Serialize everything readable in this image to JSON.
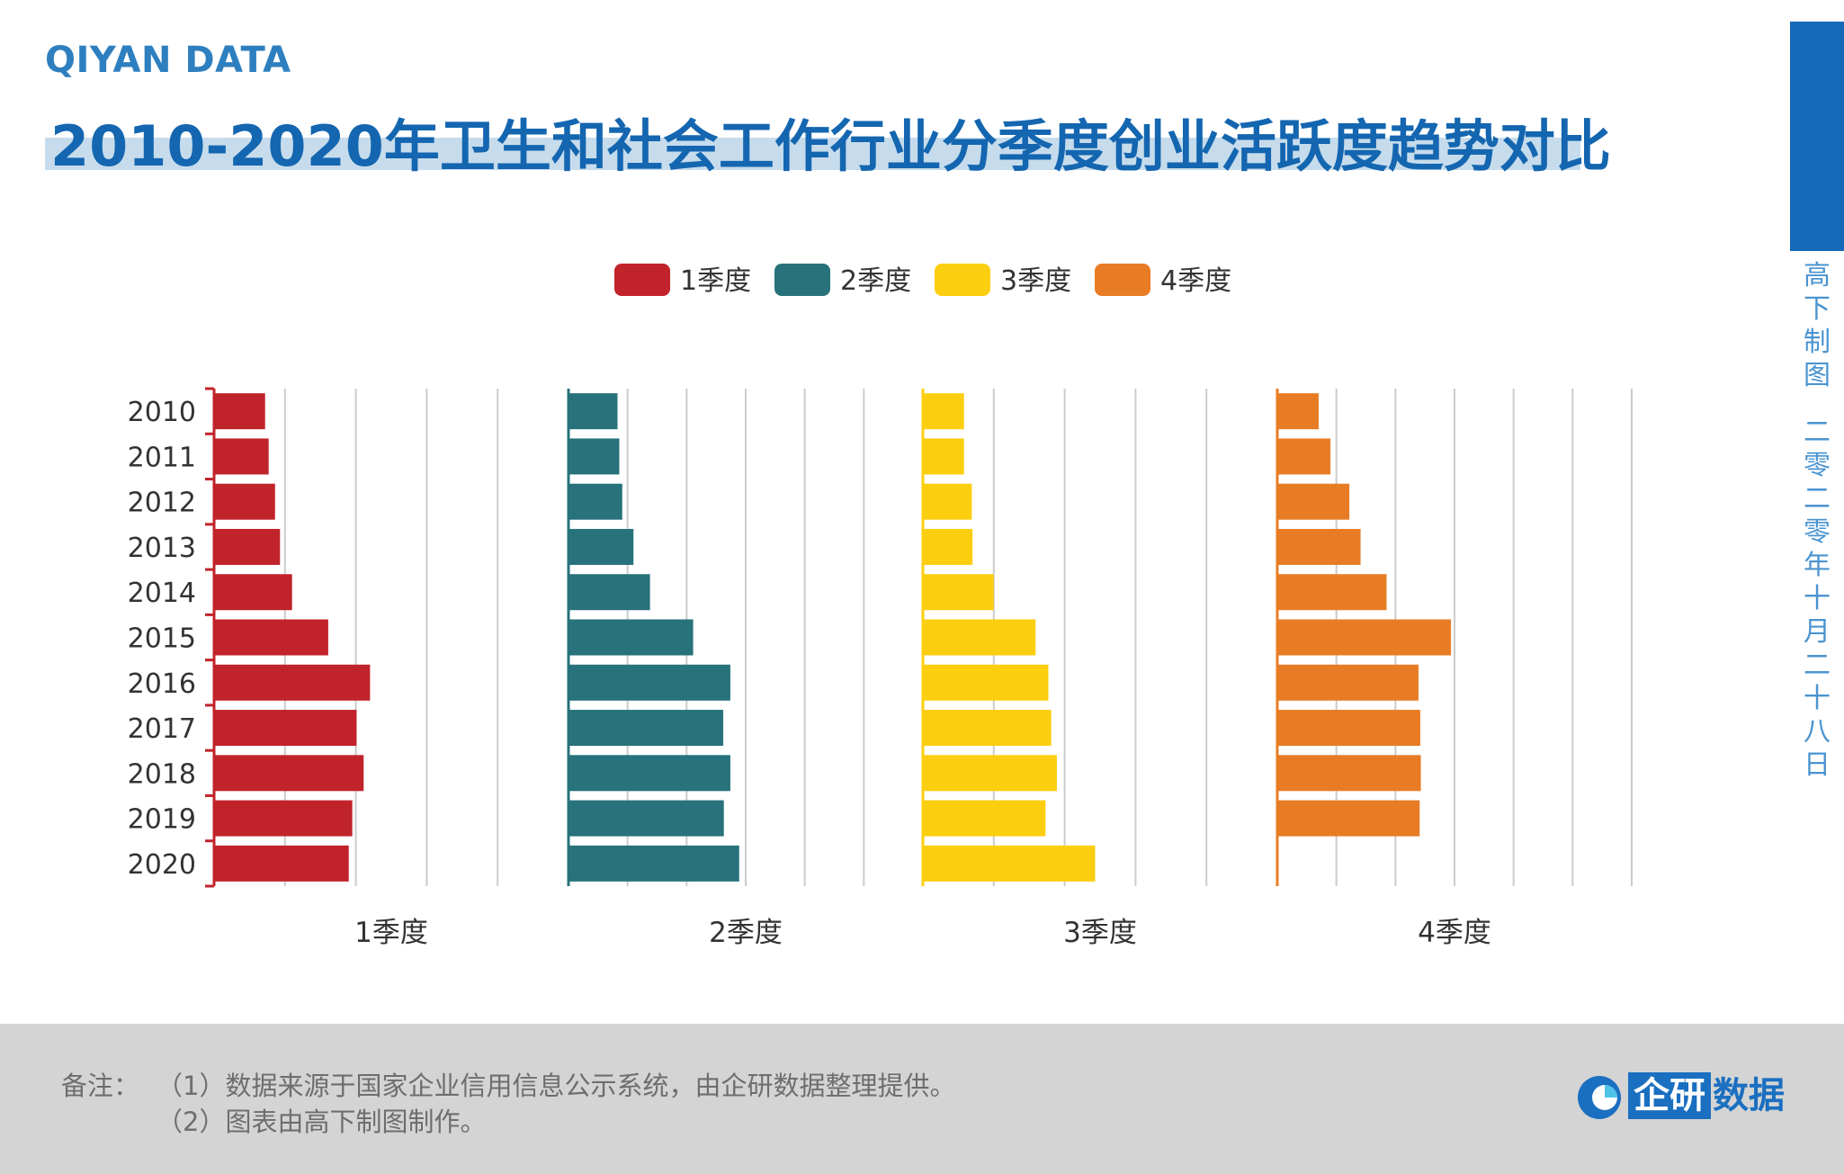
{
  "header": {
    "brand": "QIYAN DATA",
    "title": "2010-2020年卫生和社会工作行业分季度创业活跃度趋势对比"
  },
  "side": {
    "line1": "高下制图",
    "line2": "二零二零年十月二十八日"
  },
  "footer": {
    "note_label": "备注：",
    "note_1": "（1）数据来源于国家企业信用信息公示系统，由企研数据整理提供。",
    "note_2": "（2）图表由高下制图制作。",
    "logo_box": "企研",
    "logo_text": "数据"
  },
  "colors": {
    "q1": "#c1232b",
    "q2": "#27727b",
    "q3": "#fcce10",
    "q4": "#e87c25",
    "grid": "#cccccc",
    "text": "#333333"
  },
  "chart_data": {
    "type": "bar",
    "orientation": "horizontal",
    "layout": "small-multiples",
    "categories": [
      "2010",
      "2011",
      "2012",
      "2013",
      "2014",
      "2015",
      "2016",
      "2017",
      "2018",
      "2019",
      "2020"
    ],
    "legend": [
      "1季度",
      "2季度",
      "3季度",
      "4季度"
    ],
    "legend_position": "top-center",
    "grid": true,
    "series": [
      {
        "name": "1季度",
        "color": "#c1232b",
        "xlim": [
          0,
          5
        ],
        "values": [
          0.72,
          0.77,
          0.86,
          0.93,
          1.1,
          1.61,
          2.2,
          2.01,
          2.11,
          1.95,
          1.9
        ]
      },
      {
        "name": "2季度",
        "color": "#27727b",
        "xlim": [
          0,
          6
        ],
        "values": [
          0.83,
          0.86,
          0.91,
          1.1,
          1.38,
          2.11,
          2.74,
          2.62,
          2.74,
          2.63,
          2.89
        ]
      },
      {
        "name": "3季度",
        "color": "#fcce10",
        "xlim": [
          0,
          5
        ],
        "values": [
          0.58,
          0.58,
          0.69,
          0.7,
          1.0,
          1.59,
          1.77,
          1.81,
          1.89,
          1.73,
          2.43
        ]
      },
      {
        "name": "4季度",
        "color": "#e87c25",
        "xlim": [
          0,
          6
        ],
        "values": [
          0.7,
          0.9,
          1.22,
          1.41,
          1.85,
          2.94,
          2.39,
          2.42,
          2.43,
          2.41,
          0
        ]
      }
    ]
  }
}
